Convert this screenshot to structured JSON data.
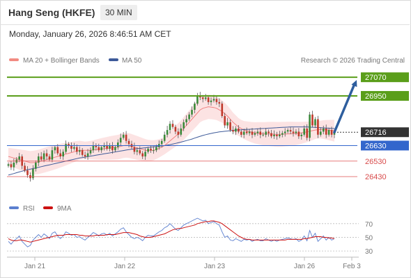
{
  "header": {
    "title": "Hang Seng (HKFE)",
    "timeframe": "30 MIN",
    "datetime": "Monday, January 26, 2026 8:46:51 AM CET"
  },
  "chart_data": [
    {
      "type": "line",
      "panel": "price",
      "legend_position": "top-left",
      "legend": [
        {
          "name": "MA 20 + Bollinger Bands",
          "color": "#f28b82"
        },
        {
          "name": "MA 50",
          "color": "#3d5a99"
        }
      ],
      "copyright": "Research © 2026 Trading Central",
      "x_labels": [
        "Jan 21",
        "Jan 22",
        "Jan 23",
        "Jan 26",
        "Feb 3"
      ],
      "ylim": [
        26350,
        27120
      ],
      "levels": [
        {
          "value": 27070,
          "label": "27070",
          "color": "#5a9e1a",
          "kind": "resistance"
        },
        {
          "value": 26950,
          "label": "26950",
          "color": "#5a9e1a",
          "kind": "resistance"
        },
        {
          "value": 26716,
          "label": "26716",
          "color": "#333333",
          "kind": "last price"
        },
        {
          "value": 26630,
          "label": "26630",
          "color": "#3366cc",
          "kind": "pivot"
        },
        {
          "value": 26530,
          "label": "26530",
          "color": "#e05050",
          "kind": "support"
        },
        {
          "value": 26430,
          "label": "26430",
          "color": "#e05050",
          "kind": "support"
        }
      ],
      "scenario_target": 27070,
      "close": [
        26510,
        26490,
        26520,
        26540,
        26560,
        26500,
        26470,
        26440,
        26420,
        26480,
        26520,
        26560,
        26540,
        26580,
        26560,
        26540,
        26600,
        26620,
        26580,
        26560,
        26590,
        26640,
        26630,
        26610,
        26620,
        26590,
        26600,
        26570,
        26560,
        26580,
        26600,
        26630,
        26620,
        26600,
        26620,
        26630,
        26610,
        26630,
        26600,
        26620,
        26650,
        26680,
        26700,
        26660,
        26640,
        26620,
        26590,
        26600,
        26580,
        26560,
        26590,
        26610,
        26600,
        26600,
        26620,
        26640,
        26660,
        26700,
        26730,
        26770,
        26750,
        26720,
        26700,
        26740,
        26780,
        26800,
        26830,
        26860,
        26900,
        26950,
        26940,
        26930,
        26940,
        26910,
        26920,
        26930,
        26910,
        26900,
        26820,
        26760,
        26780,
        26730,
        26720,
        26740,
        26720,
        26700,
        26720,
        26710,
        26720,
        26700,
        26710,
        26720,
        26700,
        26700,
        26720,
        26710,
        26690,
        26700,
        26690,
        26700,
        26710,
        26720,
        26730,
        26720,
        26710,
        26720,
        26690,
        26700,
        26740,
        26680,
        26830,
        26760,
        26800,
        26700,
        26720,
        26740,
        26700,
        26730,
        26700,
        26716
      ],
      "ma20": [
        26560,
        26555,
        26550,
        26545,
        26540,
        26535,
        26530,
        26525,
        26520,
        26520,
        26522,
        26525,
        26530,
        26535,
        26540,
        26545,
        26550,
        26555,
        26560,
        26565,
        26570,
        26575,
        26580,
        26585,
        26590,
        26595,
        26600,
        26600,
        26600,
        26600,
        26600,
        26602,
        26604,
        26606,
        26608,
        26610,
        26612,
        26614,
        26616,
        26618,
        26620,
        26625,
        26630,
        26632,
        26630,
        26625,
        26620,
        26615,
        26610,
        26605,
        26600,
        26598,
        26598,
        26600,
        26605,
        26612,
        26620,
        26630,
        26645,
        26660,
        26675,
        26690,
        26705,
        26720,
        26740,
        26760,
        26780,
        26800,
        26820,
        26840,
        26860,
        26870,
        26875,
        26880,
        26878,
        26875,
        26870,
        26860,
        26850,
        26835,
        26820,
        26800,
        26780,
        26765,
        26750,
        26740,
        26730,
        26725,
        26720,
        26715,
        26712,
        26710,
        26708,
        26706,
        26705,
        26705,
        26704,
        26703,
        26702,
        26702,
        26703,
        26704,
        26705,
        26706,
        26707,
        26708,
        26710,
        26712,
        26715,
        26718,
        26722,
        26726,
        26730,
        26732,
        26733,
        26733,
        26732,
        26730,
        26728,
        26726
      ],
      "ma50": [
        26440,
        26445,
        26450,
        26455,
        26460,
        26465,
        26470,
        26475,
        26478,
        26482,
        26486,
        26490,
        26494,
        26498,
        26502,
        26506,
        26510,
        26514,
        26518,
        26522,
        26526,
        26530,
        26534,
        26538,
        26542,
        26546,
        26550,
        26553,
        26556,
        26559,
        26562,
        26565,
        26568,
        26571,
        26574,
        26577,
        26580,
        26583,
        26586,
        26589,
        26592,
        26595,
        26598,
        26601,
        26604,
        26606,
        26608,
        26610,
        26612,
        26614,
        26616,
        26618,
        26620,
        26622,
        26624,
        26626,
        26628,
        26630,
        26633,
        26636,
        26640,
        26644,
        26648,
        26652,
        26657,
        26662,
        26667,
        26672,
        26678,
        26684,
        26690,
        26695,
        26700,
        26704,
        26708,
        26712,
        26715,
        26718,
        26720,
        26722,
        26724,
        26726,
        26728,
        26730,
        26731,
        26732,
        26733,
        26734,
        26735,
        26736,
        26737,
        26738,
        26739,
        26740,
        26741,
        26742,
        26743,
        26744,
        26745,
        26746,
        26747,
        26748,
        26749,
        26750,
        26750,
        26750,
        26750,
        26750,
        26750,
        26750,
        26749,
        26748,
        26747,
        26746,
        26745,
        26744,
        26743,
        26742,
        26741,
        26740
      ]
    },
    {
      "type": "line",
      "panel": "rsi",
      "legend": [
        {
          "name": "RSI",
          "color": "#5b7fcf"
        },
        {
          "name": "9MA",
          "color": "#cc1111"
        }
      ],
      "y_ticks": [
        70,
        50,
        30
      ],
      "ylim": [
        25,
        80
      ],
      "rsi": [
        44,
        40,
        45,
        48,
        52,
        44,
        40,
        36,
        38,
        46,
        50,
        54,
        50,
        55,
        52,
        48,
        56,
        58,
        52,
        48,
        52,
        58,
        56,
        53,
        54,
        50,
        51,
        48,
        46,
        50,
        53,
        57,
        55,
        52,
        55,
        56,
        53,
        56,
        52,
        55,
        58,
        62,
        64,
        58,
        54,
        50,
        48,
        50,
        48,
        45,
        50,
        53,
        52,
        52,
        55,
        58,
        60,
        64,
        66,
        70,
        66,
        62,
        60,
        64,
        68,
        70,
        72,
        74,
        76,
        78,
        76,
        74,
        75,
        70,
        72,
        73,
        70,
        68,
        58,
        50,
        52,
        46,
        45,
        48,
        46,
        44,
        47,
        46,
        47,
        44,
        46,
        47,
        45,
        45,
        48,
        46,
        44,
        46,
        44,
        46,
        47,
        48,
        49,
        48,
        47,
        48,
        44,
        46,
        52,
        45,
        60,
        50,
        56,
        44,
        48,
        52,
        46,
        50,
        46,
        48
      ],
      "ma9": [
        48,
        46,
        45,
        45,
        46,
        46,
        45,
        44,
        43,
        44,
        45,
        46,
        47,
        48,
        49,
        50,
        51,
        52,
        53,
        53,
        53,
        54,
        54,
        54,
        54,
        54,
        53,
        53,
        52,
        52,
        52,
        52,
        53,
        53,
        53,
        53,
        54,
        54,
        54,
        54,
        55,
        56,
        57,
        57,
        57,
        56,
        55,
        54,
        52,
        51,
        50,
        50,
        50,
        51,
        52,
        53,
        54,
        55,
        57,
        59,
        61,
        62,
        63,
        63,
        64,
        65,
        66,
        67,
        68,
        70,
        71,
        72,
        73,
        73,
        74,
        74,
        73,
        72,
        70,
        67,
        64,
        61,
        58,
        55,
        52,
        50,
        48,
        47,
        47,
        46,
        46,
        46,
        46,
        46,
        46,
        46,
        46,
        46,
        46,
        46,
        46,
        46,
        47,
        47,
        47,
        47,
        47,
        47,
        48,
        48,
        49,
        50,
        51,
        51,
        51,
        50,
        50,
        49,
        49,
        48
      ]
    }
  ]
}
